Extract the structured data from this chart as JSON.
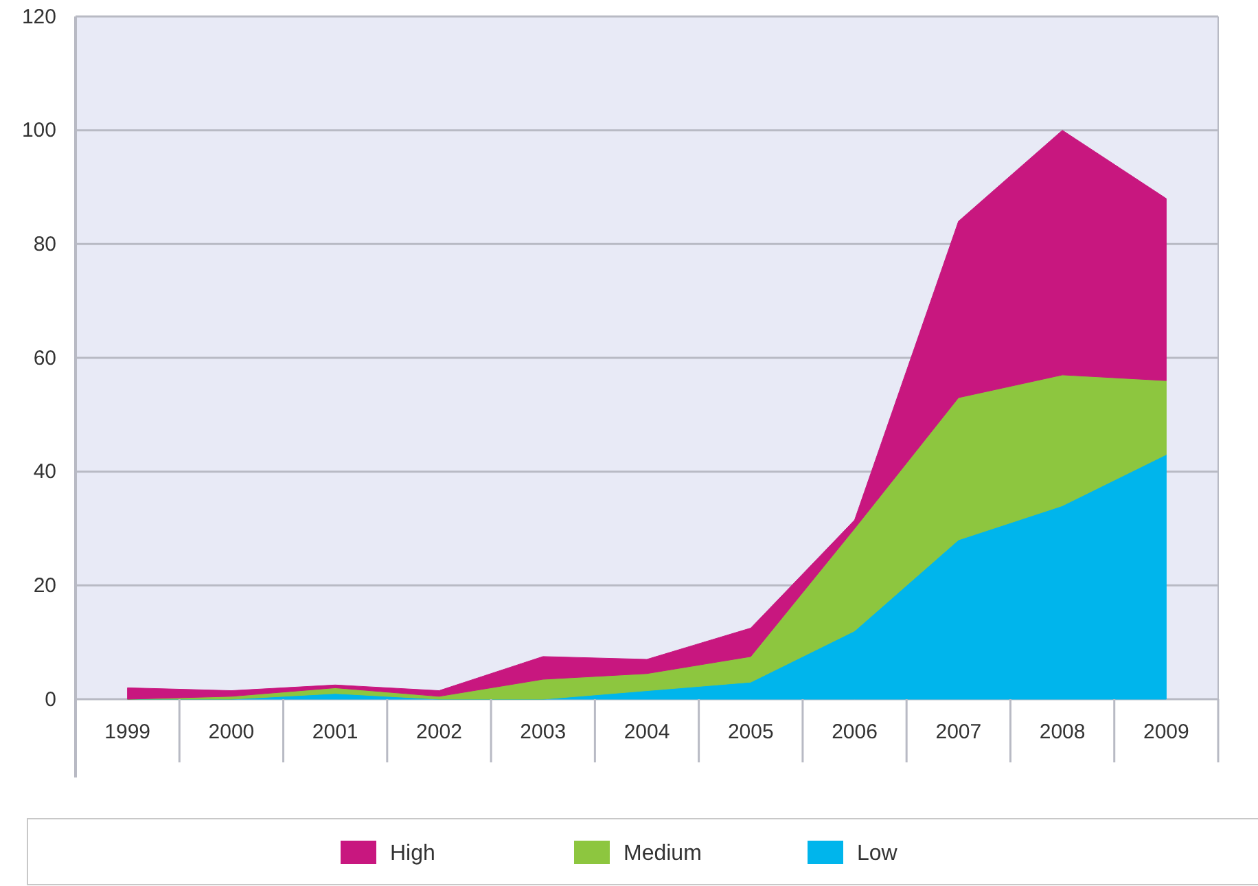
{
  "chart_data": {
    "type": "area",
    "stacked": true,
    "categories": [
      "1999",
      "2000",
      "2001",
      "2002",
      "2003",
      "2004",
      "2005",
      "2006",
      "2007",
      "2008",
      "2009"
    ],
    "series": [
      {
        "name": "Low",
        "color": "#00b5ec",
        "values": [
          0,
          0,
          1,
          0,
          0,
          1.5,
          3,
          12,
          28,
          34,
          43
        ]
      },
      {
        "name": "Medium",
        "color": "#8dc63f",
        "values": [
          0,
          0.5,
          1,
          0.5,
          3.5,
          3,
          4.5,
          18,
          25,
          23,
          13
        ]
      },
      {
        "name": "High",
        "color": "#c8177f",
        "values": [
          2,
          1,
          0.5,
          1,
          4,
          2.5,
          5,
          1.5,
          31,
          43,
          32
        ]
      }
    ],
    "ylim": [
      0,
      120
    ],
    "yticks": [
      0,
      20,
      40,
      60,
      80,
      100,
      120
    ],
    "grid": "y",
    "legend": "bottom"
  }
}
